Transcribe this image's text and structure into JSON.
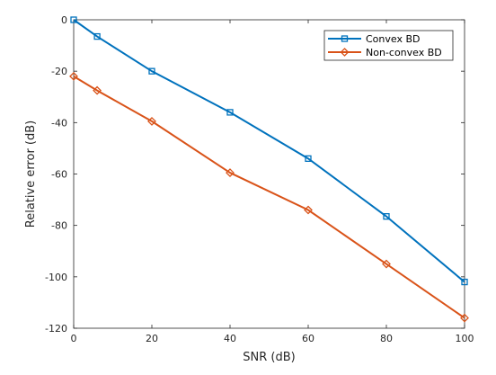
{
  "chart_data": {
    "type": "line",
    "xlabel": "SNR (dB)",
    "ylabel": "Relative  error (dB)",
    "xlim": [
      0,
      100
    ],
    "ylim": [
      -120,
      0
    ],
    "xticks": [
      0,
      20,
      40,
      60,
      80,
      100
    ],
    "yticks": [
      0,
      -20,
      -40,
      -60,
      -80,
      -100,
      -120
    ],
    "grid": false,
    "legend_position": "top-right",
    "x": [
      0,
      6,
      20,
      40,
      60,
      80,
      100
    ],
    "series": [
      {
        "name": "Convex BD",
        "values": [
          0,
          -6.5,
          -20,
          -36,
          -54,
          -76.5,
          -102
        ],
        "color": "#0072bd",
        "marker": "square"
      },
      {
        "name": "Non-convex BD",
        "values": [
          -22,
          -27.5,
          -39.5,
          -59.5,
          -74,
          -95,
          -116
        ],
        "color": "#d95319",
        "marker": "diamond"
      }
    ]
  }
}
